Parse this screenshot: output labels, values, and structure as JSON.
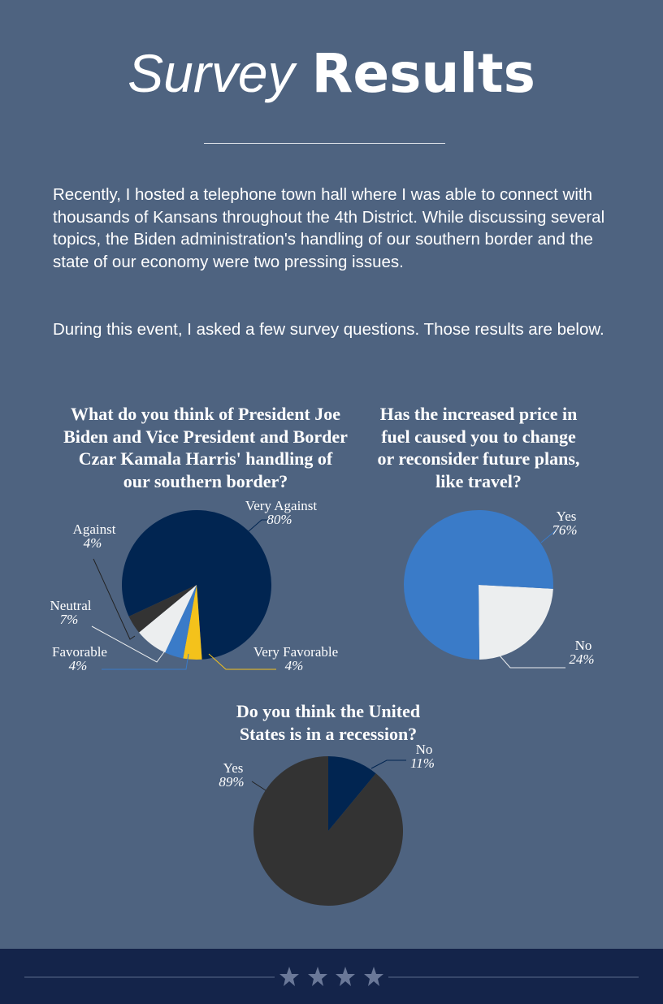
{
  "header": {
    "title_words": [
      "Survey",
      "Results"
    ],
    "paragraphs": [
      "Recently, I hosted a telephone town hall where I was able to connect with thousands of Kansans throughout the 4th District. While discussing several topics, the Biden administration's handling of our southern border and the state of our economy were two pressing issues.",
      "During this event, I asked a few survey questions. Those results are below."
    ]
  },
  "chart_data": [
    {
      "type": "pie",
      "title": "What do you think of President Joe Biden and Vice President and Border Czar Kamala Harris' handling of our southern border?",
      "categories": [
        "Very Against",
        "Very Favorable",
        "Favorable",
        "Neutral",
        "Against"
      ],
      "values": [
        80,
        4,
        4,
        7,
        4
      ],
      "value_labels": [
        "80%",
        "4%",
        "4%",
        "7%",
        "4%"
      ],
      "colors": [
        "#012551",
        "#f4c21b",
        "#3a7bc8",
        "#eceeef",
        "#333333"
      ]
    },
    {
      "type": "pie",
      "title": "Has the increased price in fuel caused you to change or reconsider future plans, like travel?",
      "categories": [
        "No",
        "Yes"
      ],
      "values": [
        24,
        76
      ],
      "value_labels": [
        "24%",
        "76%"
      ],
      "colors": [
        "#eceeef",
        "#3a7bc8"
      ]
    },
    {
      "type": "pie",
      "title": "Do you think the United States is in a recession?",
      "categories": [
        "No",
        "Yes"
      ],
      "values": [
        11,
        89
      ],
      "value_labels": [
        "11%",
        "89%"
      ],
      "colors": [
        "#012551",
        "#333333"
      ]
    }
  ]
}
